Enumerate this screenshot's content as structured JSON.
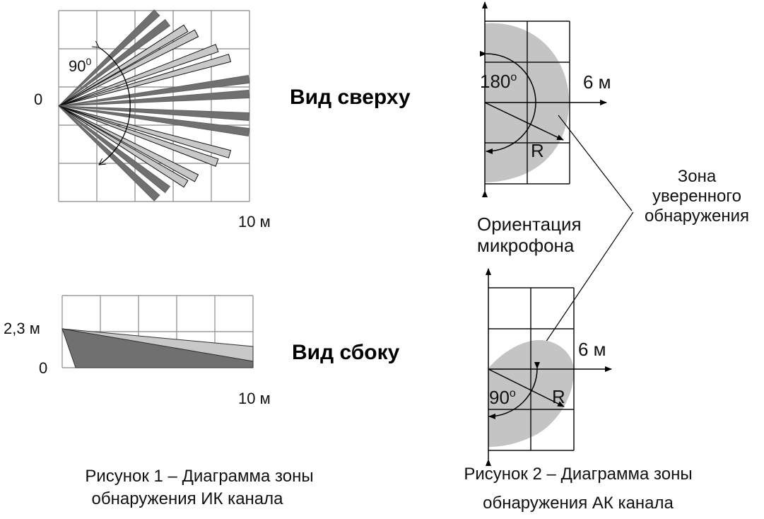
{
  "figure1": {
    "top_origin_label": "0",
    "angle_value": "90",
    "angle_sup": "0",
    "top_distance_label": "10 м",
    "side_height_label": "2,3 м",
    "side_origin_label": "0",
    "side_distance_label": "10 м",
    "caption_line1": "Рисунок 1 – Диаграмма зоны",
    "caption_line2": "обнаружения ИК канала"
  },
  "views": {
    "top": "Вид сверху",
    "side": "Вид сбоку"
  },
  "figure2": {
    "top_angle_value": "180",
    "top_angle_sup": "o",
    "top_distance_label": "6 м",
    "top_radius_label": "R",
    "mic_orientation_line1": "Ориентация",
    "mic_orientation_line2": "микрофона",
    "zone_line1": "Зона",
    "zone_line2": "уверенного",
    "zone_line3": "обнаружения",
    "side_angle_value": "90",
    "side_angle_sup": "o",
    "side_distance_label": "6 м",
    "side_radius_label": "R",
    "caption_line1": "Рисунок 2 – Диаграмма зоны",
    "caption_line2": "обнаружения АК канала"
  },
  "colors": {
    "dark_beam": "#707070",
    "light_beam": "#c8c8c8",
    "zone": "#c4c4c4"
  }
}
